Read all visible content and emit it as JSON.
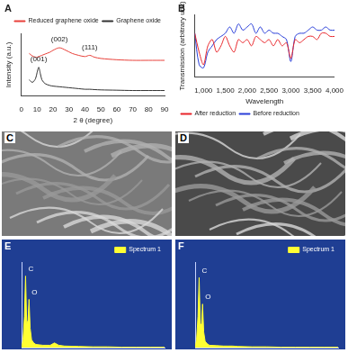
{
  "chart_data": [
    {
      "panel": "A",
      "type": "line",
      "x_label": "2 θ (degree)",
      "y_label": "Intensity (a.u.)",
      "x": [
        5,
        7,
        9,
        10,
        11,
        12,
        13,
        15,
        18,
        20,
        24,
        28,
        32,
        36,
        40,
        43,
        46,
        50,
        60,
        70,
        80,
        90
      ],
      "series": [
        {
          "name": "Reduced graphene oxide",
          "color": "#e8413a",
          "values": [
            6.8,
            6.4,
            6.2,
            6.2,
            6.3,
            6.4,
            6.5,
            6.7,
            7.0,
            7.3,
            7.7,
            7.3,
            6.8,
            6.5,
            6.3,
            6.5,
            6.2,
            6.0,
            5.8,
            5.7,
            5.7,
            5.7
          ]
        },
        {
          "name": "Graphene oxide",
          "color": "#333333",
          "values": [
            2.6,
            2.2,
            2.8,
            3.8,
            4.6,
            3.6,
            2.6,
            2.0,
            1.7,
            1.6,
            1.5,
            1.4,
            1.3,
            1.2,
            1.1,
            1.1,
            1.05,
            1.0,
            0.95,
            0.9,
            0.9,
            0.9
          ]
        }
      ],
      "xlim": [
        0,
        90
      ],
      "xticks": [
        0,
        10,
        20,
        30,
        40,
        50,
        60,
        70,
        80,
        90
      ],
      "ylim": [
        0,
        10
      ],
      "annotations": [
        {
          "text": "(001)",
          "x": 11,
          "y": 5.3
        },
        {
          "text": "(002)",
          "x": 24,
          "y": 8.4
        },
        {
          "text": "(111)",
          "x": 43,
          "y": 7.2
        }
      ],
      "legend": "upper right",
      "grid": false,
      "tick_labels": "x"
    },
    {
      "panel": "B",
      "type": "line",
      "x_label": "Wavelength",
      "y_label": "Transmission (arbitrary unit)",
      "x": [
        800,
        900,
        1000,
        1100,
        1200,
        1300,
        1400,
        1500,
        1600,
        1700,
        1800,
        1900,
        2000,
        2100,
        2200,
        2300,
        2400,
        2500,
        2600,
        2700,
        2800,
        2900,
        3000,
        3100,
        3200,
        3300,
        3400,
        3500,
        3600,
        3700,
        3800,
        3900,
        4000
      ],
      "series": [
        {
          "name": "After reduction",
          "color": "#e8252a",
          "values": [
            7.0,
            4.0,
            2.0,
            5.0,
            6.0,
            4.0,
            5.0,
            6.5,
            5.0,
            4.0,
            6.0,
            5.5,
            6.0,
            5.0,
            6.5,
            6.0,
            5.5,
            6.0,
            5.0,
            6.0,
            5.0,
            5.5,
            3.0,
            6.0,
            5.5,
            6.0,
            6.5,
            6.5,
            6.0,
            7.0,
            7.0,
            6.5,
            6.5
          ]
        },
        {
          "name": "Before reduction",
          "color": "#2a3fd8",
          "values": [
            7.0,
            2.0,
            1.5,
            4.0,
            5.0,
            6.0,
            6.5,
            7.0,
            8.0,
            7.0,
            8.5,
            7.5,
            8.0,
            8.5,
            7.0,
            8.0,
            7.0,
            7.5,
            7.0,
            7.0,
            6.5,
            6.0,
            2.5,
            6.5,
            7.0,
            7.0,
            7.5,
            8.0,
            7.5,
            7.5,
            8.0,
            7.5,
            7.5
          ]
        }
      ],
      "xlim": [
        800,
        4000
      ],
      "xticks": [
        1000,
        1500,
        2000,
        2500,
        3000,
        3500,
        4000
      ],
      "ylim": [
        0,
        10
      ],
      "legend": "lower left",
      "grid": false,
      "tick_labels": "x"
    },
    {
      "panel": "E",
      "type": "area",
      "x": [
        0,
        0.1,
        0.2,
        0.28,
        0.36,
        0.45,
        0.52,
        0.6,
        0.7,
        0.85,
        1,
        1.5,
        2,
        2.3,
        2.6,
        3,
        4,
        5,
        6,
        7,
        8,
        9,
        10
      ],
      "series": [
        {
          "name": "Spectrum 1",
          "color": "#ffff33",
          "values": [
            0,
            1,
            4,
            9.2,
            3,
            3.5,
            6.2,
            2.5,
            1,
            0.6,
            0.4,
            0.3,
            0.3,
            0.6,
            0.3,
            0.2,
            0.15,
            0.1,
            0.1,
            0.05,
            0.05,
            0.05,
            0.05
          ]
        }
      ],
      "xlim": [
        0,
        10
      ],
      "ylim": [
        0,
        11
      ],
      "annotations": [
        {
          "text": "C",
          "x": 0.28,
          "y": 9.6
        },
        {
          "text": "O",
          "x": 0.52,
          "y": 6.6
        }
      ],
      "legend": "upper right",
      "grid": false,
      "tick_labels": false
    },
    {
      "panel": "F",
      "type": "area",
      "x": [
        0,
        0.1,
        0.2,
        0.28,
        0.36,
        0.45,
        0.52,
        0.6,
        0.7,
        0.85,
        1,
        1.5,
        2,
        2.3,
        2.6,
        3,
        4,
        5,
        6,
        7,
        8,
        9,
        10
      ],
      "series": [
        {
          "name": "Spectrum 1",
          "color": "#ffff33",
          "values": [
            0,
            1,
            4,
            9.0,
            3,
            3,
            5.6,
            2,
            0.8,
            0.5,
            0.3,
            0.25,
            0.2,
            0.2,
            0.2,
            0.15,
            0.1,
            0.1,
            0.05,
            0.05,
            0.05,
            0.05,
            0.05
          ]
        }
      ],
      "xlim": [
        0,
        10
      ],
      "ylim": [
        0,
        11
      ],
      "annotations": [
        {
          "text": "C",
          "x": 0.28,
          "y": 9.4
        },
        {
          "text": "O",
          "x": 0.52,
          "y": 6.0
        }
      ],
      "legend": "upper right",
      "grid": false,
      "tick_labels": false
    }
  ],
  "images": [
    {
      "panel": "C"
    },
    {
      "panel": "D"
    }
  ]
}
